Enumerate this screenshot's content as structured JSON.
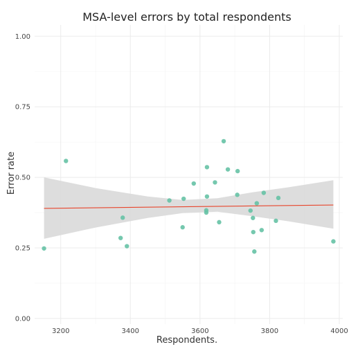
{
  "chart_data": {
    "type": "scatter",
    "title": "MSA-level errors by total respondents",
    "xlabel": "Respondents.",
    "ylabel": "Error rate",
    "xlim": [
      3125,
      4010
    ],
    "ylim": [
      -0.02,
      1.04
    ],
    "x_ticks": [
      3200,
      3400,
      3600,
      3800,
      4000
    ],
    "y_ticks": [
      0.0,
      0.25,
      0.5,
      0.75,
      1.0
    ],
    "x_tick_labels": [
      "3200",
      "3400",
      "3600",
      "3800",
      "4000"
    ],
    "y_tick_labels": [
      "0.00",
      "0.25",
      "0.50",
      "0.75",
      "1.00"
    ],
    "grid": true,
    "point_color": "#66c2a5",
    "trend_color": "#e8452c",
    "ribbon_color": "#d9d9d9",
    "points": [
      {
        "x": 3152,
        "y": 0.248
      },
      {
        "x": 3215,
        "y": 0.558
      },
      {
        "x": 3372,
        "y": 0.285
      },
      {
        "x": 3378,
        "y": 0.357
      },
      {
        "x": 3390,
        "y": 0.256
      },
      {
        "x": 3512,
        "y": 0.418
      },
      {
        "x": 3550,
        "y": 0.323
      },
      {
        "x": 3553,
        "y": 0.424
      },
      {
        "x": 3582,
        "y": 0.478
      },
      {
        "x": 3620,
        "y": 0.536
      },
      {
        "x": 3620,
        "y": 0.432
      },
      {
        "x": 3618,
        "y": 0.383
      },
      {
        "x": 3618,
        "y": 0.375
      },
      {
        "x": 3643,
        "y": 0.482
      },
      {
        "x": 3655,
        "y": 0.341
      },
      {
        "x": 3668,
        "y": 0.628
      },
      {
        "x": 3680,
        "y": 0.528
      },
      {
        "x": 3707,
        "y": 0.438
      },
      {
        "x": 3708,
        "y": 0.522
      },
      {
        "x": 3745,
        "y": 0.382
      },
      {
        "x": 3752,
        "y": 0.356
      },
      {
        "x": 3753,
        "y": 0.306
      },
      {
        "x": 3756,
        "y": 0.237
      },
      {
        "x": 3763,
        "y": 0.408
      },
      {
        "x": 3777,
        "y": 0.313
      },
      {
        "x": 3783,
        "y": 0.445
      },
      {
        "x": 3818,
        "y": 0.346
      },
      {
        "x": 3825,
        "y": 0.427
      },
      {
        "x": 3983,
        "y": 0.273
      }
    ],
    "trend": {
      "x": [
        3152,
        3983
      ],
      "y": [
        0.39,
        0.402
      ]
    },
    "ribbon": {
      "x": [
        3152,
        3300,
        3450,
        3550,
        3650,
        3750,
        3850,
        3983
      ],
      "upper": [
        0.5,
        0.462,
        0.432,
        0.42,
        0.426,
        0.447,
        0.464,
        0.49
      ],
      "lower": [
        0.282,
        0.322,
        0.356,
        0.373,
        0.378,
        0.362,
        0.345,
        0.318
      ]
    }
  }
}
